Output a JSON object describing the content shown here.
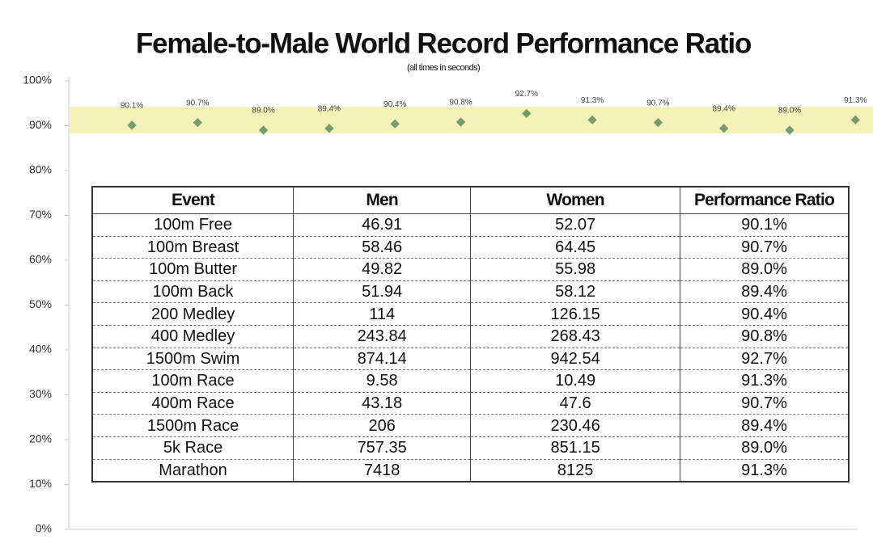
{
  "chart_data": {
    "type": "scatter",
    "title": "Female-to-Male World Record Performance Ratio",
    "subtitle": "(all times in seconds)",
    "values": [
      90.1,
      90.7,
      89.0,
      89.4,
      90.4,
      90.8,
      92.7,
      91.3,
      90.7,
      89.4,
      89.0,
      91.3
    ],
    "value_labels": [
      "90.1%",
      "90.7%",
      "89.0%",
      "89.4%",
      "90.4%",
      "90.8%",
      "92.7%",
      "91.3%",
      "90.7%",
      "89.4%",
      "89.0%",
      "91.3%"
    ],
    "color": "#7a9a6a",
    "highlight_band": [
      88.3,
      94.2
    ],
    "highlight_color": "#f3f2b8",
    "ylim": [
      0,
      100
    ],
    "yticks": [
      {
        "value": 0,
        "label": "0%"
      },
      {
        "value": 10,
        "label": "10%"
      },
      {
        "value": 20,
        "label": "20%"
      },
      {
        "value": 30,
        "label": "30%"
      },
      {
        "value": 40,
        "label": "40%"
      },
      {
        "value": 50,
        "label": "50%"
      },
      {
        "value": 60,
        "label": "60%"
      },
      {
        "value": 70,
        "label": "70%"
      },
      {
        "value": 80,
        "label": "80%"
      },
      {
        "value": 90,
        "label": "90%"
      },
      {
        "value": 100,
        "label": "100%"
      }
    ],
    "grid": false
  },
  "table": {
    "header": [
      "Event",
      "Men",
      "Women",
      "Performance Ratio"
    ],
    "rows": [
      [
        "100m Free",
        "46.91",
        "52.07",
        "90.1%"
      ],
      [
        "100m Breast",
        "58.46",
        "64.45",
        "90.7%"
      ],
      [
        "100m Butter",
        "49.82",
        "55.98",
        "89.0%"
      ],
      [
        "100m Back",
        "51.94",
        "58.12",
        "89.4%"
      ],
      [
        "200 Medley",
        "114",
        "126.15",
        "90.4%"
      ],
      [
        "400 Medley",
        "243.84",
        "268.43",
        "90.8%"
      ],
      [
        "1500m Swim",
        "874.14",
        "942.54",
        "92.7%"
      ],
      [
        "100m Race",
        "9.58",
        "10.49",
        "91.3%"
      ],
      [
        "400m Race",
        "43.18",
        "47.6",
        "90.7%"
      ],
      [
        "1500m Race",
        "206",
        "230.46",
        "89.4%"
      ],
      [
        "5k Race",
        "757.35",
        "851.15",
        "89.0%"
      ],
      [
        "Marathon",
        "7418",
        "8125",
        "91.3%"
      ]
    ]
  }
}
